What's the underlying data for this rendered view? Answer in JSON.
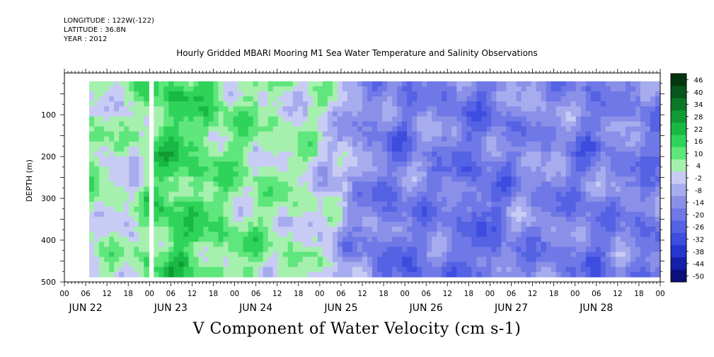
{
  "header": {
    "longitude": "LONGITUDE : 122W(-122)",
    "latitude": "LATITUDE : 36.8N",
    "year": "YEAR : 2012"
  },
  "chart_data": {
    "type": "heatmap",
    "title": "Hourly Gridded MBARI Mooring M1 Sea Water Temperature and Salinity Observations",
    "bottom_title": "V Component of Water Velocity (cm s-1)",
    "ylabel": "DEPTH (m)",
    "ylim": [
      500,
      0
    ],
    "y_ticks": [
      "100",
      "200",
      "300",
      "400",
      "500"
    ],
    "y_tick_values": [
      100,
      200,
      300,
      400,
      500
    ],
    "x_hour_ticks": [
      "00",
      "06",
      "12",
      "18",
      "00",
      "06",
      "12",
      "18",
      "00",
      "06",
      "12",
      "18",
      "00",
      "06",
      "12",
      "18",
      "00",
      "06",
      "12",
      "18",
      "00",
      "06",
      "12",
      "18",
      "00",
      "06",
      "12",
      "18",
      "00"
    ],
    "x_day_labels": [
      "JUN 22",
      "JUN 23",
      "JUN 24",
      "JUN 25",
      "JUN 26",
      "JUN 27",
      "JUN 28"
    ],
    "x_range_hours": [
      0,
      168
    ],
    "data_depth_range_m": [
      20,
      485
    ],
    "colorbar": {
      "labels": [
        "46",
        "40",
        "34",
        "28",
        "22",
        "16",
        "10",
        "4",
        "-2",
        "-8",
        "-14",
        "-20",
        "-26",
        "-32",
        "-38",
        "-44",
        "-50"
      ],
      "values": [
        46,
        40,
        34,
        28,
        22,
        16,
        10,
        4,
        -2,
        -8,
        -14,
        -20,
        -26,
        -32,
        -38,
        -44,
        -50
      ],
      "colors": [
        "#03360f",
        "#07561c",
        "#0b7828",
        "#109a34",
        "#19b845",
        "#2fd35a",
        "#5fe67c",
        "#a6f0ae",
        "#c8ccf4",
        "#a6acee",
        "#8a90e8",
        "#6f78e6",
        "#5562e3",
        "#3c4ddf",
        "#2535cf",
        "#1420a7",
        "#0a0f7a"
      ]
    },
    "series": [
      {
        "day_hours": [
          6,
          7,
          16,
          18,
          24,
          30,
          38,
          48,
          56,
          62,
          70,
          74,
          80,
          88,
          94,
          100,
          108,
          116,
          124,
          132,
          140,
          148,
          156,
          162,
          168
        ],
        "approx_mean_velocity": [
          6,
          8,
          4,
          2,
          14,
          18,
          14,
          10,
          8,
          6,
          4,
          2,
          -6,
          -14,
          -16,
          -12,
          -14,
          -18,
          -14,
          -10,
          -12,
          -16,
          -10,
          -14,
          -14
        ]
      }
    ],
    "gaps_hours": [
      [
        0,
        6.5
      ],
      [
        22.5,
        24.8
      ]
    ]
  }
}
